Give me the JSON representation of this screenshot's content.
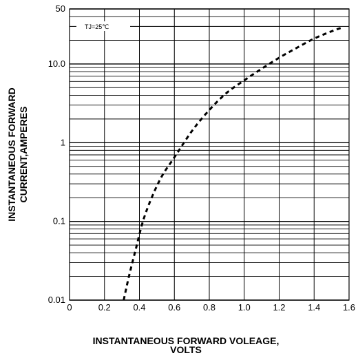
{
  "chart_data": {
    "type": "line",
    "xlabel": [
      "INSTANTANEOUS FORWARD VOLEAGE,",
      "VOLTS"
    ],
    "ylabel": [
      "INSTANTANEOUS FORWARD",
      "CURRENT,AMPERES"
    ],
    "annotation": "TJ=25℃",
    "xlim": [
      0,
      1.6
    ],
    "ylim": [
      0.01,
      50
    ],
    "yscale": "log",
    "grid": true,
    "x_ticks": [
      {
        "value": 0,
        "label": "0"
      },
      {
        "value": 0.2,
        "label": "0.2"
      },
      {
        "value": 0.4,
        "label": "0.4"
      },
      {
        "value": 0.6,
        "label": "0.6"
      },
      {
        "value": 0.8,
        "label": "0.8"
      },
      {
        "value": 1.0,
        "label": "1.0"
      },
      {
        "value": 1.2,
        "label": "1.2"
      },
      {
        "value": 1.4,
        "label": "1.4"
      },
      {
        "value": 1.6,
        "label": "1.6"
      }
    ],
    "y_ticks": [
      {
        "value": 0.01,
        "label": "0.01"
      },
      {
        "value": 0.1,
        "label": "0.1"
      },
      {
        "value": 1,
        "label": "1"
      },
      {
        "value": 10,
        "label": "10.0"
      },
      {
        "value": 50,
        "label": "50"
      }
    ],
    "series": [
      {
        "line_style": "dashed",
        "color": "#000000",
        "x": [
          0.31,
          0.34,
          0.38,
          0.42,
          0.47,
          0.53,
          0.6,
          0.7,
          0.8,
          0.9,
          1.0,
          1.1,
          1.2,
          1.3,
          1.4,
          1.5,
          1.56
        ],
        "y": [
          0.01,
          0.02,
          0.045,
          0.1,
          0.2,
          0.38,
          0.65,
          1.4,
          2.6,
          4.3,
          6.2,
          8.7,
          12,
          16,
          21,
          26,
          29
        ]
      }
    ]
  }
}
